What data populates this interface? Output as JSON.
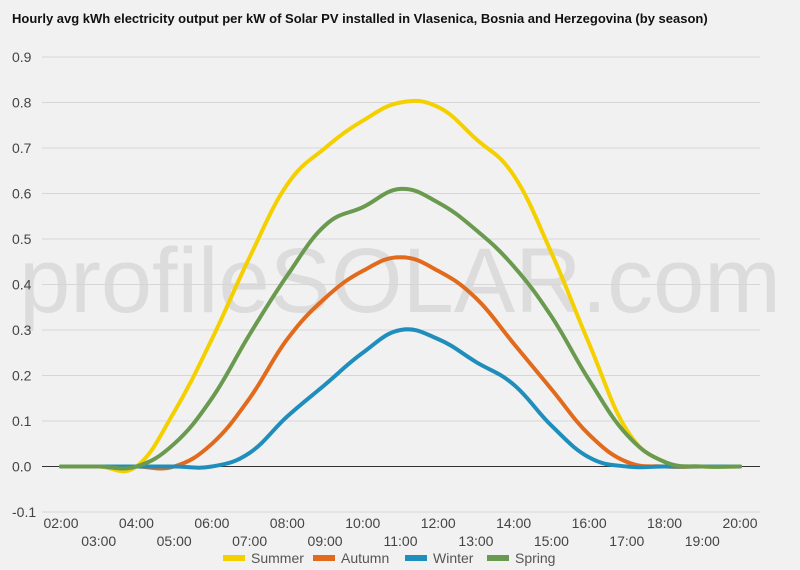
{
  "chart_data": {
    "type": "line",
    "title": "Hourly avg kWh electricity output per kW of Solar PV installed in Vlasenica, Bosnia and Herzegovina (by season)",
    "watermark": "profileSOLAR.com",
    "x": [
      "02:00",
      "03:00",
      "04:00",
      "05:00",
      "06:00",
      "07:00",
      "08:00",
      "09:00",
      "10:00",
      "11:00",
      "12:00",
      "13:00",
      "14:00",
      "15:00",
      "16:00",
      "17:00",
      "18:00",
      "19:00",
      "20:00"
    ],
    "x_labels_top": [
      "02:00",
      "04:00",
      "06:00",
      "08:00",
      "10:00",
      "12:00",
      "14:00",
      "16:00",
      "18:00",
      "20:00"
    ],
    "x_labels_bottom": [
      "03:00",
      "05:00",
      "07:00",
      "09:00",
      "11:00",
      "13:00",
      "15:00",
      "17:00",
      "19:00"
    ],
    "ylim": [
      -0.1,
      0.9
    ],
    "yticks": [
      "0.9",
      "0.8",
      "0.7",
      "0.6",
      "0.5",
      "0.4",
      "0.3",
      "0.2",
      "0.1",
      "0.0",
      "-0.1"
    ],
    "grid": true,
    "legend_position": "bottom",
    "series": [
      {
        "name": "Summer",
        "color": "#f5d000",
        "values": [
          0,
          0,
          0,
          0.12,
          0.28,
          0.46,
          0.62,
          0.7,
          0.76,
          0.8,
          0.79,
          0.72,
          0.64,
          0.47,
          0.27,
          0.08,
          0.01,
          0,
          0
        ]
      },
      {
        "name": "Autumn",
        "color": "#e26a1c",
        "values": [
          0,
          0,
          0,
          0,
          0.05,
          0.15,
          0.28,
          0.37,
          0.43,
          0.46,
          0.43,
          0.37,
          0.27,
          0.17,
          0.07,
          0.01,
          0,
          0,
          0
        ]
      },
      {
        "name": "Winter",
        "color": "#1f8ebc",
        "values": [
          0,
          0,
          0,
          0,
          0,
          0.03,
          0.11,
          0.18,
          0.25,
          0.3,
          0.28,
          0.23,
          0.18,
          0.09,
          0.02,
          0,
          0,
          0,
          0
        ]
      },
      {
        "name": "Spring",
        "color": "#6a9a4f",
        "values": [
          0,
          0,
          0,
          0.05,
          0.15,
          0.29,
          0.42,
          0.53,
          0.57,
          0.61,
          0.58,
          0.52,
          0.44,
          0.33,
          0.19,
          0.07,
          0.01,
          0,
          0
        ]
      }
    ]
  }
}
